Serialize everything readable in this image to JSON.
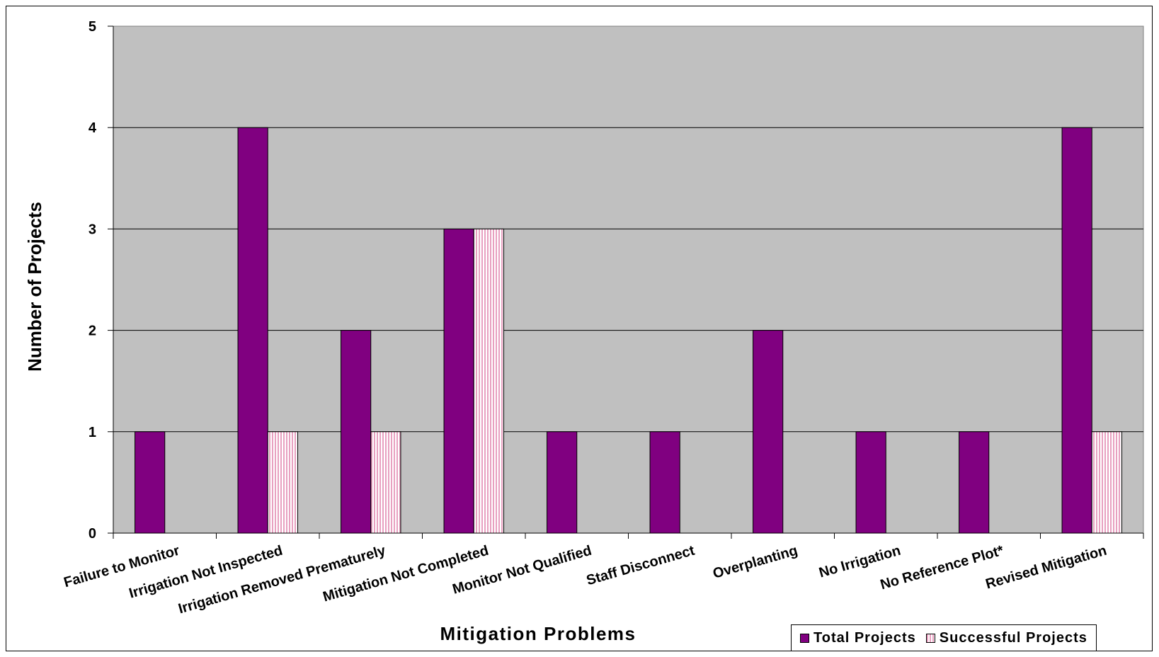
{
  "chart_data": {
    "type": "bar",
    "title": "",
    "xlabel": "Mitigation Problems",
    "ylabel": "Number of Projects",
    "ylim": [
      0,
      5
    ],
    "yticks": [
      "0",
      "1",
      "2",
      "3",
      "4",
      "5"
    ],
    "grid": true,
    "legend_position": "bottom-right",
    "plot_background": "#c0c0c0",
    "categories": [
      "Failure to Monitor",
      "Irrigation Not Inspected",
      "Irrigation Removed Prematurely",
      "Mitigation Not Completed",
      "Monitor Not Qualified",
      "Staff Disconnect",
      "Overplanting",
      "No Irrigation",
      "No Reference Plot*",
      "Revised Mitigation"
    ],
    "series": [
      {
        "name": "Total Projects",
        "color": "#800080",
        "pattern": "solid",
        "values": [
          1,
          4,
          2,
          3,
          1,
          1,
          2,
          1,
          1,
          4
        ]
      },
      {
        "name": "Successful Projects",
        "color": "#ffc0cb",
        "pattern": "vertical-stripes",
        "values": [
          0,
          1,
          1,
          3,
          0,
          0,
          0,
          0,
          0,
          1
        ]
      }
    ]
  }
}
